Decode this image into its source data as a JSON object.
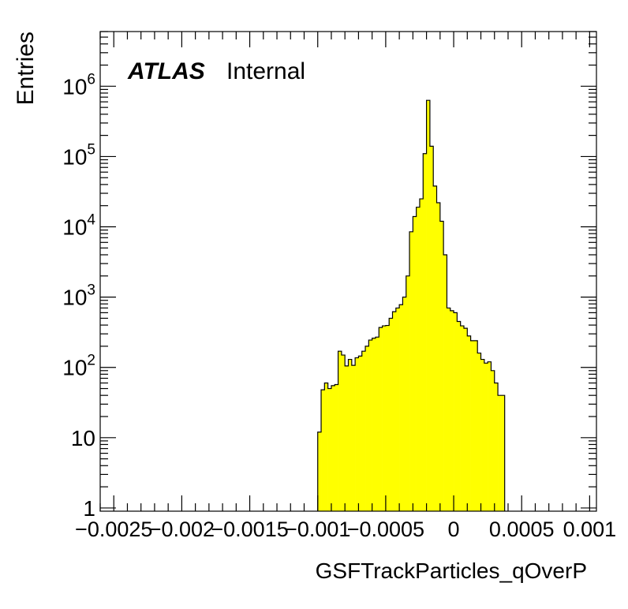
{
  "chart_data": {
    "type": "bar",
    "subtype": "histogram",
    "title": "",
    "xlabel": "GSFTrackParticles_qOverP",
    "ylabel": "Entries",
    "atlas_label": "ATLAS",
    "atlas_status": "Internal",
    "x_scale": "linear",
    "y_scale": "log",
    "xlim": [
      -0.0026,
      0.00105
    ],
    "ylim": [
      0.9,
      6000000
    ],
    "x_ticks": [
      {
        "value": -0.0025,
        "label": "−0.0025"
      },
      {
        "value": -0.002,
        "label": "−0.002"
      },
      {
        "value": -0.0015,
        "label": "−0.0015"
      },
      {
        "value": -0.001,
        "label": "−0.001"
      },
      {
        "value": -0.0005,
        "label": "−0.0005"
      },
      {
        "value": 0,
        "label": "0"
      },
      {
        "value": 0.0005,
        "label": "0.0005"
      },
      {
        "value": 0.001,
        "label": "0.001"
      }
    ],
    "y_ticks": [
      {
        "value": 1,
        "mantissa": "1",
        "exp": ""
      },
      {
        "value": 10,
        "mantissa": "10",
        "exp": ""
      },
      {
        "value": 100,
        "mantissa": "10",
        "exp": "2"
      },
      {
        "value": 1000,
        "mantissa": "10",
        "exp": "3"
      },
      {
        "value": 10000,
        "mantissa": "10",
        "exp": "4"
      },
      {
        "value": 100000,
        "mantissa": "10",
        "exp": "5"
      },
      {
        "value": 1000000,
        "mantissa": "10",
        "exp": "6"
      }
    ],
    "bin_start": -0.001,
    "bin_width": 2.5e-05,
    "fill_color": "#ffff00",
    "line_color": "#000000",
    "grid": false,
    "legend": "none",
    "values": [
      12,
      48,
      60,
      50,
      55,
      57,
      170,
      150,
      105,
      130,
      107,
      137,
      145,
      170,
      200,
      245,
      260,
      270,
      370,
      390,
      395,
      500,
      620,
      700,
      780,
      1000,
      2000,
      8500,
      14000,
      19000,
      25000,
      110000,
      630000,
      140000,
      38000,
      22000,
      12000,
      4000,
      700,
      640,
      600,
      450,
      390,
      360,
      280,
      240,
      240,
      160,
      130,
      115,
      120,
      90,
      60,
      40,
      40
    ]
  }
}
